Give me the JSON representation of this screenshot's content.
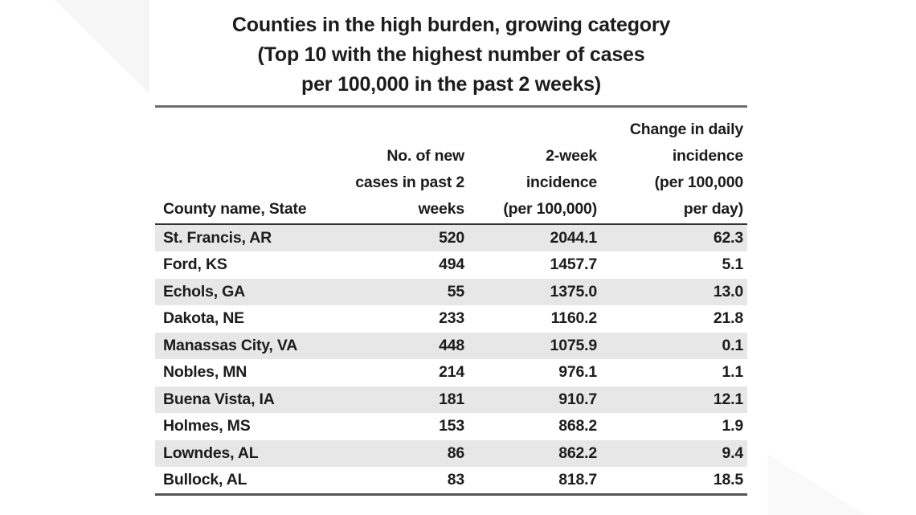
{
  "title": {
    "display": "Counties in the high burden, growing category\n(Top 10 with the highest number of cases\nper 100,000 in the past 2 weeks)"
  },
  "table": {
    "columns": [
      {
        "key": "county",
        "header_display": "County name, State"
      },
      {
        "key": "cases",
        "header_display": "No. of new\ncases in past 2\nweeks"
      },
      {
        "key": "incidence",
        "header_display": "2-week\nincidence\n(per 100,000)"
      },
      {
        "key": "change",
        "header_display": "Change in daily\nincidence\n(per 100,000\nper day)"
      }
    ],
    "rows": [
      {
        "county": "St. Francis, AR",
        "cases": "520",
        "incidence": "2044.1",
        "change": "62.3"
      },
      {
        "county": "Ford, KS",
        "cases": "494",
        "incidence": "1457.7",
        "change": "5.1"
      },
      {
        "county": "Echols, GA",
        "cases": "55",
        "incidence": "1375.0",
        "change": "13.0"
      },
      {
        "county": "Dakota, NE",
        "cases": "233",
        "incidence": "1160.2",
        "change": "21.8"
      },
      {
        "county": "Manassas City, VA",
        "cases": "448",
        "incidence": "1075.9",
        "change": "0.1"
      },
      {
        "county": "Nobles, MN",
        "cases": "214",
        "incidence": "976.1",
        "change": "1.1"
      },
      {
        "county": "Buena Vista, IA",
        "cases": "181",
        "incidence": "910.7",
        "change": "12.1"
      },
      {
        "county": "Holmes, MS",
        "cases": "153",
        "incidence": "868.2",
        "change": "1.9"
      },
      {
        "county": "Lowndes, AL",
        "cases": "86",
        "incidence": "862.2",
        "change": "9.4"
      },
      {
        "county": "Bullock, AL",
        "cases": "83",
        "incidence": "818.7",
        "change": "18.5"
      }
    ]
  },
  "colors": {
    "row_shade": "#e7e7e7",
    "top_rule": "#6e6e6e",
    "header_rule": "#333333",
    "bottom_rule": "#555555",
    "text": "#1c1c1c",
    "backdrop_accent": "#f6f6f7"
  },
  "chart_data": {
    "type": "table",
    "title": "Counties in the high burden, growing category (Top 10 with the highest number of cases per 100,000 in the past 2 weeks)",
    "columns": [
      "County name, State",
      "No. of new cases in past 2 weeks",
      "2-week incidence (per 100,000)",
      "Change in daily incidence (per 100,000 per day)"
    ],
    "rows": [
      [
        "St. Francis, AR",
        520,
        2044.1,
        62.3
      ],
      [
        "Ford, KS",
        494,
        1457.7,
        5.1
      ],
      [
        "Echols, GA",
        55,
        1375.0,
        13.0
      ],
      [
        "Dakota, NE",
        233,
        1160.2,
        21.8
      ],
      [
        "Manassas City, VA",
        448,
        1075.9,
        0.1
      ],
      [
        "Nobles, MN",
        214,
        976.1,
        1.1
      ],
      [
        "Buena Vista, IA",
        181,
        910.7,
        12.1
      ],
      [
        "Holmes, MS",
        153,
        868.2,
        1.9
      ],
      [
        "Lowndes, AL",
        86,
        862.2,
        9.4
      ],
      [
        "Bullock, AL",
        83,
        818.7,
        18.5
      ]
    ]
  }
}
